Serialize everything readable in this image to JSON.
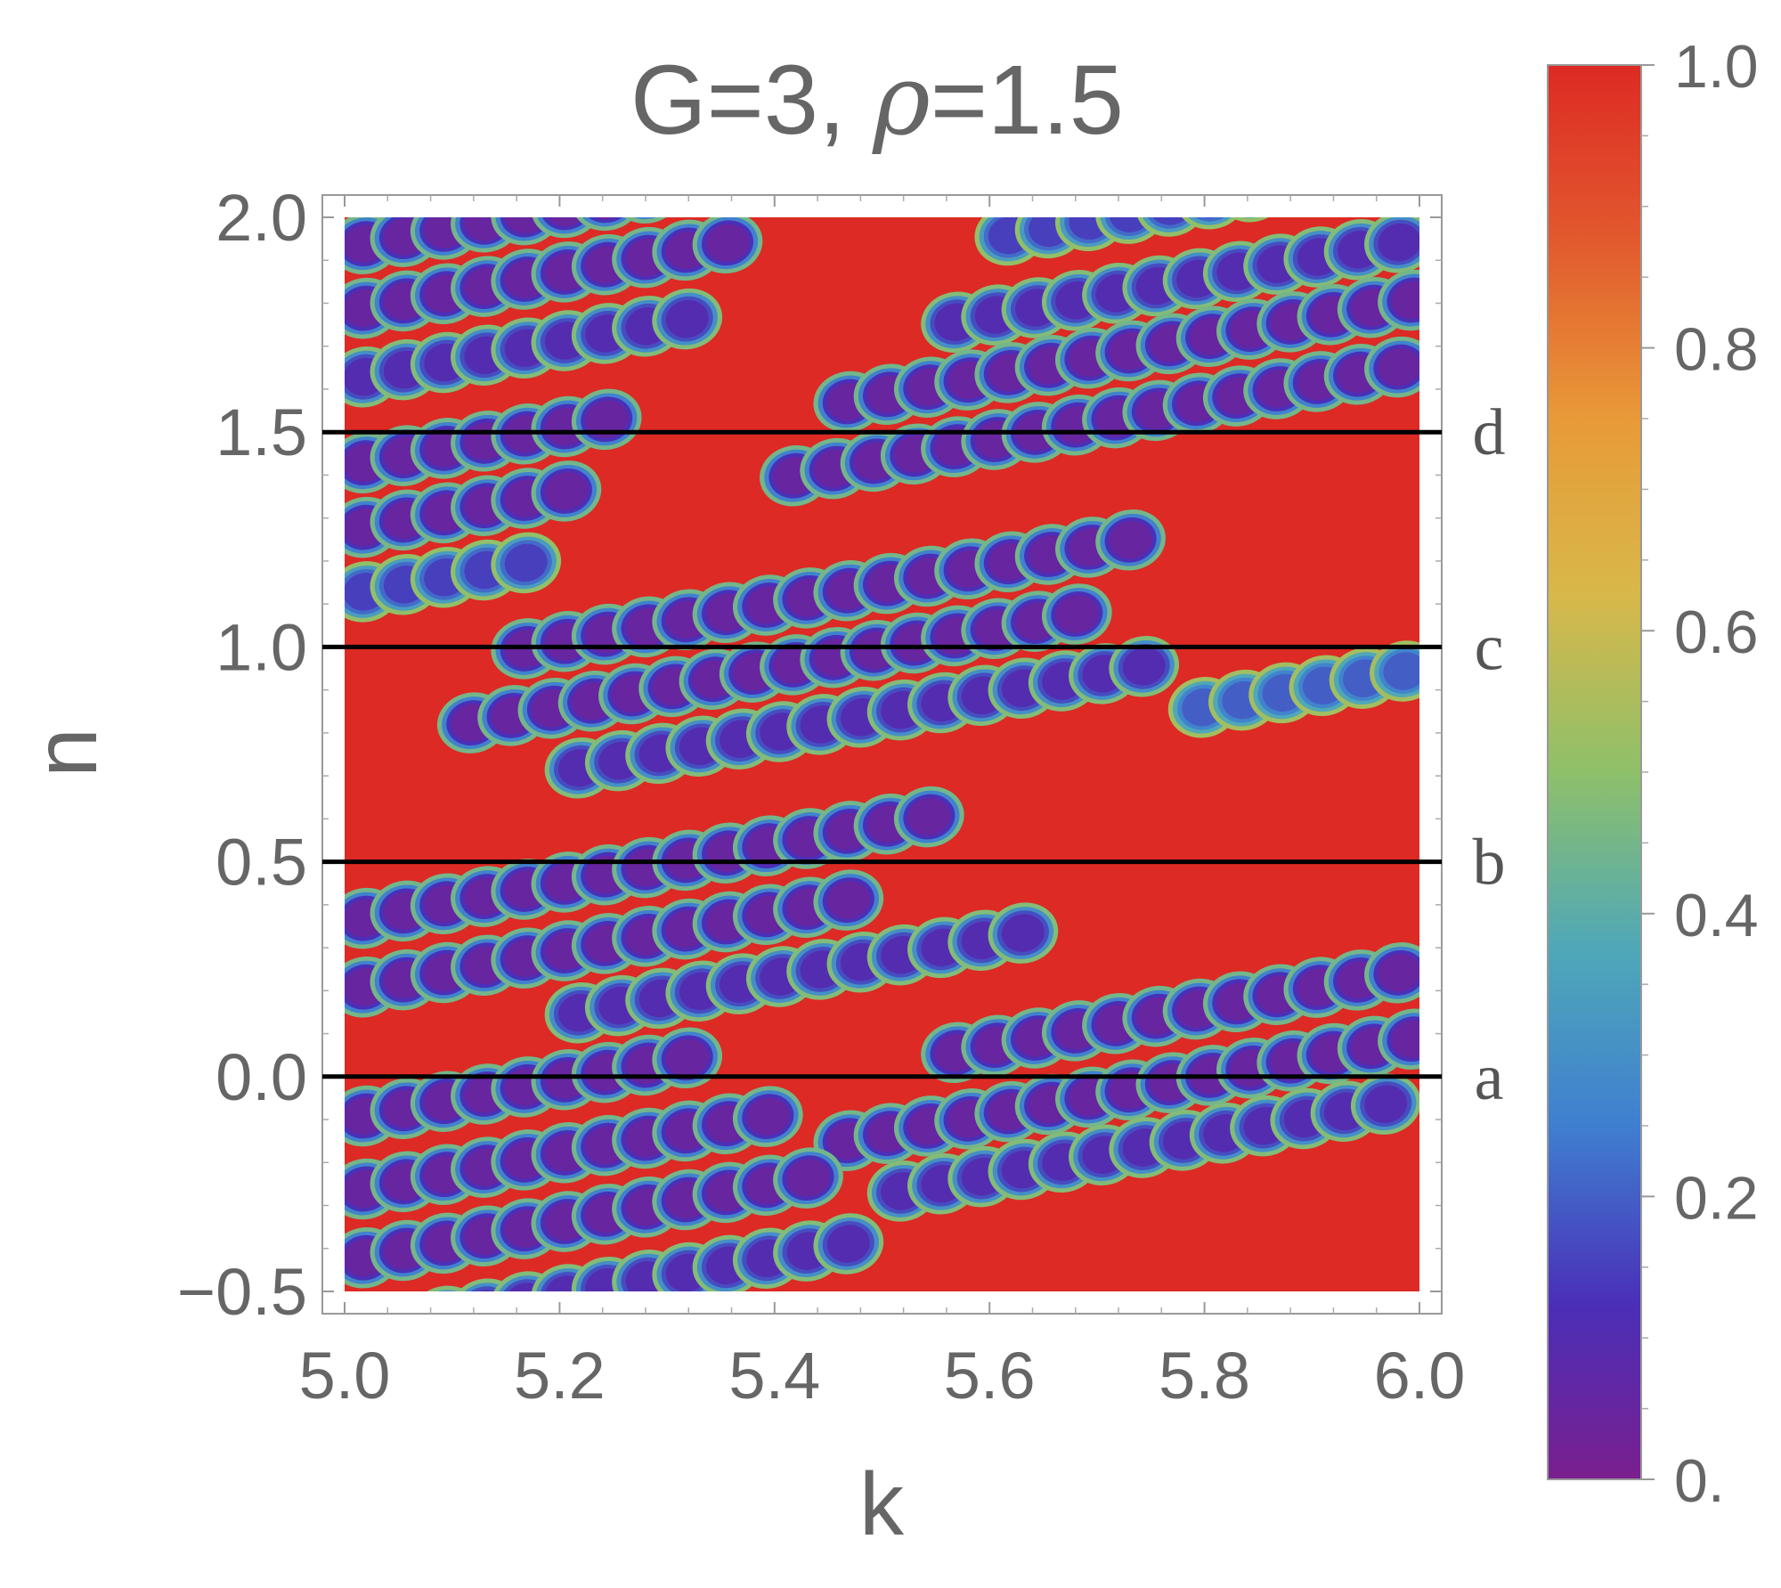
{
  "chart_data": {
    "type": "heatmap",
    "title_prefix": "G=3, ",
    "title_symbol": "ρ",
    "title_suffix": "=1.5",
    "xlabel": "k",
    "ylabel": "n",
    "xlim": [
      5.0,
      6.0
    ],
    "ylim": [
      -0.5,
      2.0
    ],
    "x_ticks": [
      "5.0",
      "5.2",
      "5.4",
      "5.6",
      "5.8",
      "6.0"
    ],
    "x_tick_values": [
      5.0,
      5.2,
      5.4,
      5.6,
      5.8,
      6.0
    ],
    "y_ticks": [
      "-0.5",
      "0.0",
      "0.5",
      "1.0",
      "1.5",
      "2.0"
    ],
    "y_tick_labels": [
      "−0.5",
      "0.0",
      "0.5",
      "1.0",
      "1.5",
      "2.0"
    ],
    "y_tick_values": [
      -0.5,
      0.0,
      0.5,
      1.0,
      1.5,
      2.0
    ],
    "colorbar": {
      "range": [
        0.0,
        1.0
      ],
      "ticks": [
        "0.",
        "0.2",
        "0.4",
        "0.6",
        "0.8",
        "1.0"
      ],
      "tick_values": [
        0.0,
        0.2,
        0.4,
        0.6,
        0.8,
        1.0
      ],
      "colors": [
        "#7a1f8f",
        "#4a2fb8",
        "#3f7fd0",
        "#4fa8b8",
        "#8ec06a",
        "#d8b84a",
        "#e89a38",
        "#e25a2e",
        "#dd2a24"
      ]
    },
    "horizontal_lines": [
      {
        "n": 0.0,
        "label": "a"
      },
      {
        "n": 0.5,
        "label": "b"
      },
      {
        "n": 1.0,
        "label": "c"
      },
      {
        "n": 1.5,
        "label": "d"
      }
    ],
    "background_value": 1.0,
    "resonance_bands": [
      {
        "n_at_k5": 1.93,
        "slope": 0.45,
        "k_from": 5.0,
        "k_to": 5.42,
        "depth": 0.95
      },
      {
        "n_at_k5": 1.78,
        "slope": 0.45,
        "k_from": 5.0,
        "k_to": 5.38,
        "depth": 0.95
      },
      {
        "n_at_k5": 1.62,
        "slope": 0.45,
        "k_from": 5.0,
        "k_to": 5.34,
        "depth": 0.9
      },
      {
        "n_at_k5": 1.42,
        "slope": 0.45,
        "k_from": 5.0,
        "k_to": 5.25,
        "depth": 0.95
      },
      {
        "n_at_k5": 1.27,
        "slope": 0.45,
        "k_from": 5.0,
        "k_to": 5.22,
        "depth": 0.95
      },
      {
        "n_at_k5": 1.12,
        "slope": 0.45,
        "k_from": 5.0,
        "k_to": 5.2,
        "depth": 0.85
      },
      {
        "n_at_k5": 1.5,
        "slope": 0.45,
        "k_from": 5.55,
        "k_to": 6.0,
        "depth": 0.9
      },
      {
        "n_at_k5": 1.36,
        "slope": 0.45,
        "k_from": 5.45,
        "k_to": 6.0,
        "depth": 0.95
      },
      {
        "n_at_k5": 1.21,
        "slope": 0.45,
        "k_from": 5.4,
        "k_to": 6.0,
        "depth": 0.95
      },
      {
        "n_at_k5": 0.92,
        "slope": 0.45,
        "k_from": 5.15,
        "k_to": 5.75,
        "depth": 0.95
      },
      {
        "n_at_k5": 0.77,
        "slope": 0.45,
        "k_from": 5.1,
        "k_to": 5.7,
        "depth": 0.95
      },
      {
        "n_at_k5": 0.62,
        "slope": 0.45,
        "k_from": 5.2,
        "k_to": 5.75,
        "depth": 0.9
      },
      {
        "n_at_k5": 0.36,
        "slope": 0.45,
        "k_from": 5.0,
        "k_to": 5.55,
        "depth": 0.95
      },
      {
        "n_at_k5": 0.2,
        "slope": 0.45,
        "k_from": 5.0,
        "k_to": 5.5,
        "depth": 0.95
      },
      {
        "n_at_k5": 0.05,
        "slope": 0.45,
        "k_from": 5.2,
        "k_to": 5.65,
        "depth": 0.9
      },
      {
        "n_at_k5": -0.2,
        "slope": 0.45,
        "k_from": 5.55,
        "k_to": 6.0,
        "depth": 0.95
      },
      {
        "n_at_k5": -0.36,
        "slope": 0.45,
        "k_from": 5.45,
        "k_to": 6.0,
        "depth": 0.95
      },
      {
        "n_at_k5": -0.5,
        "slope": 0.45,
        "k_from": 5.5,
        "k_to": 6.0,
        "depth": 0.9
      },
      {
        "n_at_k5": -0.1,
        "slope": 0.45,
        "k_from": 5.0,
        "k_to": 5.35,
        "depth": 0.95
      },
      {
        "n_at_k5": -0.27,
        "slope": 0.45,
        "k_from": 5.0,
        "k_to": 5.4,
        "depth": 0.95
      },
      {
        "n_at_k5": -0.43,
        "slope": 0.45,
        "k_from": 5.0,
        "k_to": 5.45,
        "depth": 0.95
      },
      {
        "n_at_k5": -0.6,
        "slope": 0.45,
        "k_from": 5.0,
        "k_to": 5.5,
        "depth": 0.9
      },
      {
        "n_at_k5": 1.68,
        "slope": 0.45,
        "k_from": 5.6,
        "k_to": 6.0,
        "depth": 0.85
      },
      {
        "n_at_k5": 0.5,
        "slope": 0.45,
        "k_from": 5.78,
        "k_to": 6.0,
        "depth": 0.8
      }
    ]
  }
}
